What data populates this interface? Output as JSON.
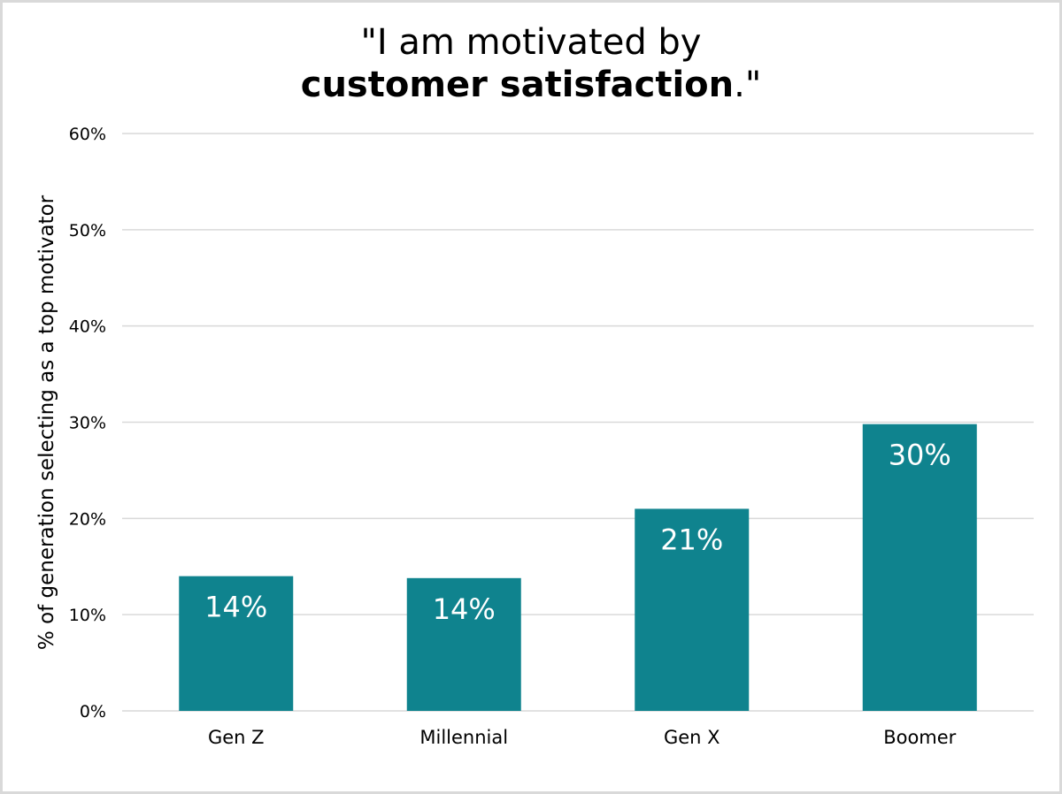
{
  "chart_data": {
    "type": "bar",
    "title": {
      "prefix": "\"I am motivated by",
      "emphasis": "customer satisfaction",
      "suffix": ".\""
    },
    "ylabel": "% of generation selecting as a top motivator",
    "xlabel": "",
    "categories": [
      "Gen Z",
      "Millennial",
      "Gen X",
      "Boomer"
    ],
    "values": [
      14,
      13.8,
      21,
      29.8
    ],
    "data_labels": [
      "14%",
      "14%",
      "21%",
      "30%"
    ],
    "ylim": [
      0,
      60
    ],
    "yticks": [
      0,
      10,
      20,
      30,
      40,
      50,
      60
    ],
    "ytick_labels": [
      "0%",
      "10%",
      "20%",
      "30%",
      "40%",
      "50%",
      "60%"
    ],
    "grid": true,
    "legend": "none",
    "bar_color": "#0f838e",
    "grid_color": "#d9d9d9"
  }
}
